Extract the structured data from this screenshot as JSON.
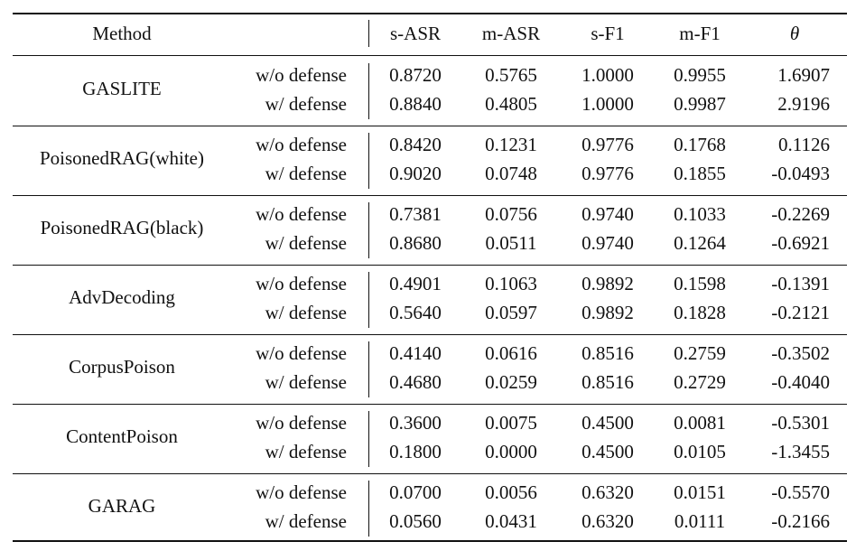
{
  "table": {
    "headers": {
      "method": "Method",
      "s_asr": "s-ASR",
      "m_asr": "m-ASR",
      "s_f1": "s-F1",
      "m_f1": "m-F1",
      "theta": "θ"
    },
    "groups": [
      {
        "method": "GASLITE",
        "rows": [
          {
            "setting": "w/o defense",
            "s_asr": "0.8720",
            "m_asr": "0.5765",
            "s_f1": "1.0000",
            "m_f1": "0.9955",
            "theta": "1.6907"
          },
          {
            "setting": "w/ defense",
            "s_asr": "0.8840",
            "m_asr": "0.4805",
            "s_f1": "1.0000",
            "m_f1": "0.9987",
            "theta": "2.9196"
          }
        ]
      },
      {
        "method": "PoisonedRAG(white)",
        "rows": [
          {
            "setting": "w/o defense",
            "s_asr": "0.8420",
            "m_asr": "0.1231",
            "s_f1": "0.9776",
            "m_f1": "0.1768",
            "theta": "0.1126"
          },
          {
            "setting": "w/ defense",
            "s_asr": "0.9020",
            "m_asr": "0.0748",
            "s_f1": "0.9776",
            "m_f1": "0.1855",
            "theta": "-0.0493"
          }
        ]
      },
      {
        "method": "PoisonedRAG(black)",
        "rows": [
          {
            "setting": "w/o defense",
            "s_asr": "0.7381",
            "m_asr": "0.0756",
            "s_f1": "0.9740",
            "m_f1": "0.1033",
            "theta": "-0.2269"
          },
          {
            "setting": "w/ defense",
            "s_asr": "0.8680",
            "m_asr": "0.0511",
            "s_f1": "0.9740",
            "m_f1": "0.1264",
            "theta": "-0.6921"
          }
        ]
      },
      {
        "method": "AdvDecoding",
        "rows": [
          {
            "setting": "w/o defense",
            "s_asr": "0.4901",
            "m_asr": "0.1063",
            "s_f1": "0.9892",
            "m_f1": "0.1598",
            "theta": "-0.1391"
          },
          {
            "setting": "w/ defense",
            "s_asr": "0.5640",
            "m_asr": "0.0597",
            "s_f1": "0.9892",
            "m_f1": "0.1828",
            "theta": "-0.2121"
          }
        ]
      },
      {
        "method": "CorpusPoison",
        "rows": [
          {
            "setting": "w/o defense",
            "s_asr": "0.4140",
            "m_asr": "0.0616",
            "s_f1": "0.8516",
            "m_f1": "0.2759",
            "theta": "-0.3502"
          },
          {
            "setting": "w/ defense",
            "s_asr": "0.4680",
            "m_asr": "0.0259",
            "s_f1": "0.8516",
            "m_f1": "0.2729",
            "theta": "-0.4040"
          }
        ]
      },
      {
        "method": "ContentPoison",
        "rows": [
          {
            "setting": "w/o defense",
            "s_asr": "0.3600",
            "m_asr": "0.0075",
            "s_f1": "0.4500",
            "m_f1": "0.0081",
            "theta": "-0.5301"
          },
          {
            "setting": "w/ defense",
            "s_asr": "0.1800",
            "m_asr": "0.0000",
            "s_f1": "0.4500",
            "m_f1": "0.0105",
            "theta": "-1.3455"
          }
        ]
      },
      {
        "method": "GARAG",
        "rows": [
          {
            "setting": "w/o defense",
            "s_asr": "0.0700",
            "m_asr": "0.0056",
            "s_f1": "0.6320",
            "m_f1": "0.0151",
            "theta": "-0.5570"
          },
          {
            "setting": "w/ defense",
            "s_asr": "0.0560",
            "m_asr": "0.0431",
            "s_f1": "0.6320",
            "m_f1": "0.0111",
            "theta": "-0.2166"
          }
        ]
      }
    ]
  }
}
